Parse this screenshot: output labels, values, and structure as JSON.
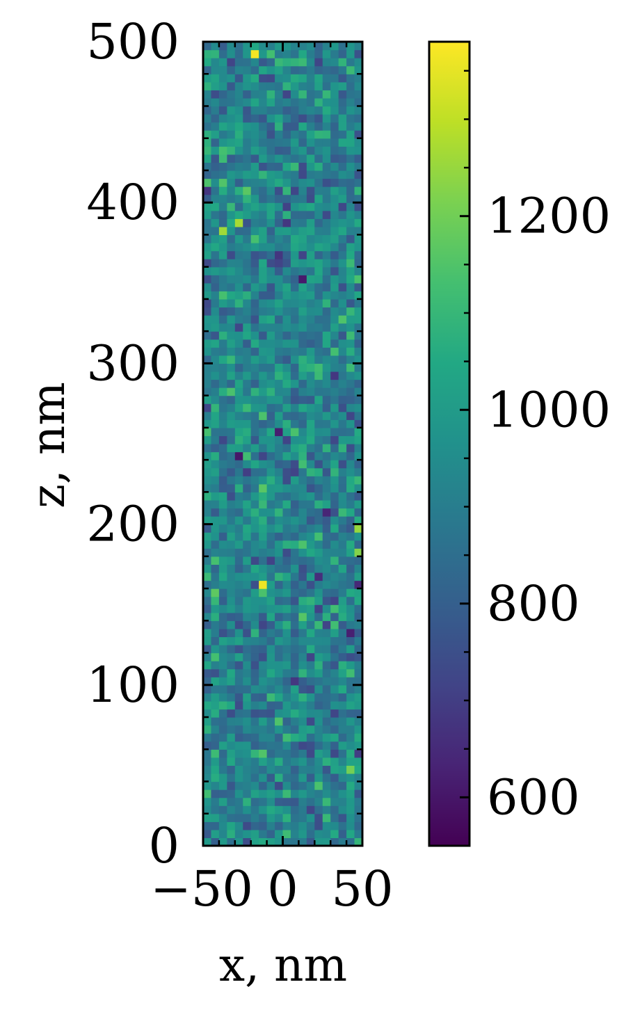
{
  "chart_data": {
    "type": "heatmap",
    "title": "",
    "xlabel": "x, nm",
    "ylabel": "z, nm",
    "xlim": [
      -50,
      50
    ],
    "ylim": [
      0,
      500
    ],
    "x_ticks": [
      -50,
      0,
      50
    ],
    "x_tick_labels": [
      "−50",
      "0",
      "50"
    ],
    "y_ticks": [
      0,
      100,
      200,
      300,
      400,
      500
    ],
    "y_tick_labels": [
      "0",
      "100",
      "200",
      "300",
      "400",
      "500"
    ],
    "colorbar": {
      "colormap": "viridis",
      "vmin": 550,
      "vmax": 1380,
      "ticks": [
        600,
        800,
        1000,
        1200
      ],
      "tick_labels": [
        "600",
        "800",
        "1000",
        "1200"
      ]
    },
    "grid": false,
    "cell_size_nm": 5,
    "grid_cols": 20,
    "grid_rows": 100,
    "value_summary": {
      "typical": 920,
      "spread": 110,
      "notable_high": [
        {
          "x": -17.5,
          "z": 492.5,
          "value": 1370
        },
        {
          "x": -12.5,
          "z": 162.5,
          "value": 1360
        },
        {
          "x": 47.5,
          "z": 197.5,
          "value": 1250
        },
        {
          "x": -37.5,
          "z": 382.5,
          "value": 1260
        },
        {
          "x": -27.5,
          "z": 387.5,
          "value": 1270
        }
      ],
      "notable_low": [
        {
          "x": -27.5,
          "z": 242.5,
          "value": 600
        },
        {
          "x": -2.5,
          "z": 257.5,
          "value": 620
        },
        {
          "x": 12.5,
          "z": 352.5,
          "value": 610
        }
      ]
    }
  }
}
